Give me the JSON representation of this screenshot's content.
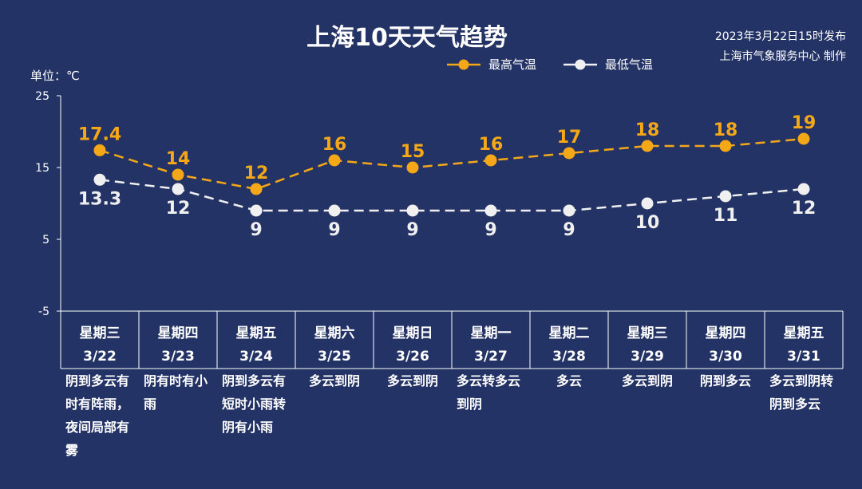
{
  "header": {
    "title": "上海10天天气趋势",
    "published": "2023年3月22日15时发布",
    "producer": "上海市气象服务中心 制作",
    "unit_label": "单位：℃"
  },
  "colors": {
    "background": "#243366",
    "high": "#f5a817",
    "low": "#f0f0f0",
    "axis": "#ffffff"
  },
  "chart_data": {
    "type": "line",
    "title": "上海10天天气趋势",
    "ylabel": "单位：℃",
    "ylim": [
      -5,
      25
    ],
    "yticks": [
      25,
      15,
      5,
      -5
    ],
    "categories": [
      "3/22",
      "3/23",
      "3/24",
      "3/25",
      "3/26",
      "3/27",
      "3/28",
      "3/29",
      "3/30",
      "3/31"
    ],
    "weekdays": [
      "星期三",
      "星期四",
      "星期五",
      "星期六",
      "星期日",
      "星期一",
      "星期二",
      "星期三",
      "星期四",
      "星期五"
    ],
    "series": [
      {
        "name": "最高气温",
        "values": [
          17.4,
          14,
          12,
          16,
          15,
          16,
          17,
          18,
          18,
          19
        ],
        "labels": [
          "17.4",
          "14",
          "12",
          "16",
          "15",
          "16",
          "17",
          "18",
          "18",
          "19"
        ]
      },
      {
        "name": "最低气温",
        "values": [
          13.3,
          12,
          9,
          9,
          9,
          9,
          9,
          10,
          11,
          12
        ],
        "labels": [
          "13.3",
          "12",
          "9",
          "9",
          "9",
          "9",
          "9",
          "10",
          "11",
          "12"
        ]
      }
    ],
    "weather": [
      [
        "阴到多云有",
        "时有阵雨，",
        "夜间局部有",
        "雾"
      ],
      [
        "阴有时有小",
        "雨"
      ],
      [
        "阴到多云有",
        "短时小雨转",
        "阴有小雨"
      ],
      [
        "多云到阴"
      ],
      [
        "多云到阴"
      ],
      [
        "多云转多云",
        "到阴"
      ],
      [
        "多云"
      ],
      [
        "多云到阴"
      ],
      [
        "阴到多云"
      ],
      [
        "多云到阴转",
        "阴到多云"
      ]
    ],
    "legend_position": "top-right",
    "grid": false
  }
}
